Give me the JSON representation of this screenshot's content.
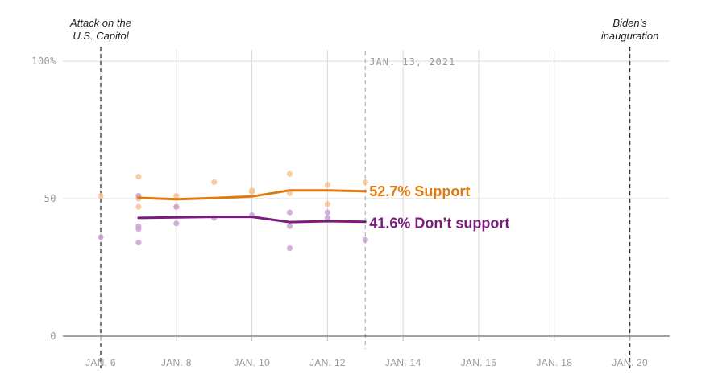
{
  "chart_data": {
    "type": "line",
    "y_ticks": [
      {
        "value": 0,
        "label": "0"
      },
      {
        "value": 50,
        "label": "50"
      },
      {
        "value": 100,
        "label": "100%"
      }
    ],
    "ylim": [
      0,
      100
    ],
    "xlim": [
      5.5,
      20.5
    ],
    "x_ticks": [
      {
        "day": 6,
        "label": "JAN. 6"
      },
      {
        "day": 8,
        "label": "JAN. 8"
      },
      {
        "day": 10,
        "label": "JAN. 10"
      },
      {
        "day": 12,
        "label": "JAN. 12"
      },
      {
        "day": 14,
        "label": "JAN. 14"
      },
      {
        "day": 16,
        "label": "JAN. 16"
      },
      {
        "day": 18,
        "label": "JAN. 18"
      },
      {
        "day": 20,
        "label": "JAN. 20"
      }
    ],
    "events": [
      {
        "day": 6,
        "line1": "Attack on the",
        "line2": "U.S. Capitol"
      },
      {
        "day": 20,
        "line1": "Biden’s",
        "line2": "inauguration"
      }
    ],
    "current_date": {
      "day": 13,
      "label": "JAN. 13, 2021"
    },
    "series": [
      {
        "name": "Support",
        "end_label": "52.7% Support",
        "color": "#e07a10",
        "dot_color": "#f7c48f",
        "line": [
          [
            7,
            50.3
          ],
          [
            8,
            49.8
          ],
          [
            9,
            50.2
          ],
          [
            10,
            50.8
          ],
          [
            11,
            53.0
          ],
          [
            12,
            53.0
          ],
          [
            13,
            52.7
          ]
        ],
        "polls": [
          [
            6,
            51
          ],
          [
            7,
            58
          ],
          [
            7,
            51
          ],
          [
            7,
            50
          ],
          [
            7,
            47
          ],
          [
            8,
            51
          ],
          [
            8,
            47
          ],
          [
            9,
            56
          ],
          [
            10,
            53
          ],
          [
            10,
            52.5
          ],
          [
            11,
            59
          ],
          [
            11,
            52
          ],
          [
            12,
            55
          ],
          [
            12,
            48
          ],
          [
            13,
            56
          ]
        ]
      },
      {
        "name": "Don’t support",
        "end_label": "41.6% Don’t support",
        "color": "#7b1c7d",
        "dot_color": "#c9a3d2",
        "line": [
          [
            7,
            43.0
          ],
          [
            8,
            43.2
          ],
          [
            9,
            43.4
          ],
          [
            10,
            43.4
          ],
          [
            11,
            41.5
          ],
          [
            12,
            41.8
          ],
          [
            13,
            41.6
          ]
        ],
        "polls": [
          [
            6,
            36
          ],
          [
            7,
            51
          ],
          [
            7,
            40
          ],
          [
            7,
            39
          ],
          [
            7,
            34
          ],
          [
            8,
            47
          ],
          [
            8,
            41
          ],
          [
            9,
            43
          ],
          [
            10,
            44
          ],
          [
            11,
            45
          ],
          [
            11,
            40
          ],
          [
            11,
            32
          ],
          [
            12,
            45
          ],
          [
            12,
            43
          ],
          [
            13,
            35
          ]
        ]
      }
    ]
  }
}
